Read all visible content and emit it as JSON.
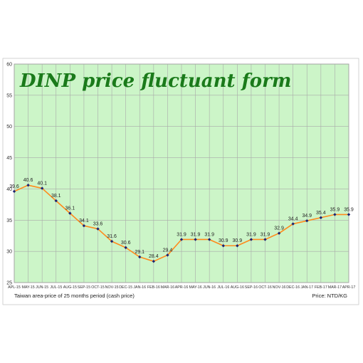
{
  "chart_data": {
    "type": "line",
    "title": "DINP price fluctuant form",
    "xlabel": "Taiwan area-price of 25 months period (cash price)",
    "ylabel": "Price: NTD/KG",
    "ylim": [
      25,
      60
    ],
    "yticks": [
      25,
      30,
      35,
      40,
      45,
      50,
      55,
      60
    ],
    "grid": true,
    "categories": [
      "APL-15",
      "MAY-15",
      "JUN-15",
      "JUL-15",
      "AUG-15",
      "SEP-15",
      "OCT-15",
      "NOV-15",
      "DEC-15",
      "JAN-16",
      "FEB-16",
      "MAR-16",
      "APR-16",
      "MAY-16",
      "JUN-16",
      "JUL-16",
      "AUG-16",
      "SEP-16",
      "OCT-16",
      "NOV-16",
      "DEC-16",
      "JAN-17",
      "FEB-17",
      "MAR-17",
      "APR-17"
    ],
    "values": [
      39.6,
      40.6,
      40.1,
      38.1,
      36.1,
      34.1,
      33.6,
      31.6,
      30.6,
      29.1,
      28.4,
      29.4,
      31.9,
      31.9,
      31.9,
      30.9,
      30.9,
      31.9,
      31.9,
      32.9,
      34.4,
      34.9,
      35.4,
      35.9,
      35.9
    ],
    "colors": {
      "plot_background": "#ccf5c8",
      "grid": "#a9a9a9",
      "line": "#ff8a1c",
      "marker": "#1c2470",
      "title": "#1a7a1a"
    }
  }
}
